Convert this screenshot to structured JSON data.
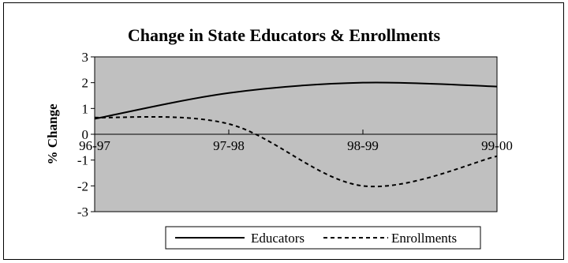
{
  "chart_data": {
    "type": "line",
    "title": "Change in State Educators & Enrollments",
    "ylabel": "% Change",
    "xlabel": "",
    "categories": [
      "96-97",
      "97-98",
      "98-99",
      "99-00"
    ],
    "ylim": [
      -3,
      3
    ],
    "yticks": [
      3,
      2,
      1,
      0,
      -1,
      -2,
      -3
    ],
    "grid": false,
    "legend_position": "bottom",
    "plot_background": "#c0c0c0",
    "series": [
      {
        "name": "Educators",
        "values": [
          0.6,
          1.6,
          2.0,
          1.85
        ],
        "style": "solid",
        "color": "#000000"
      },
      {
        "name": "Enrollments",
        "values": [
          0.65,
          0.4,
          -2.0,
          -0.85
        ],
        "style": "dashed",
        "color": "#000000"
      }
    ]
  }
}
